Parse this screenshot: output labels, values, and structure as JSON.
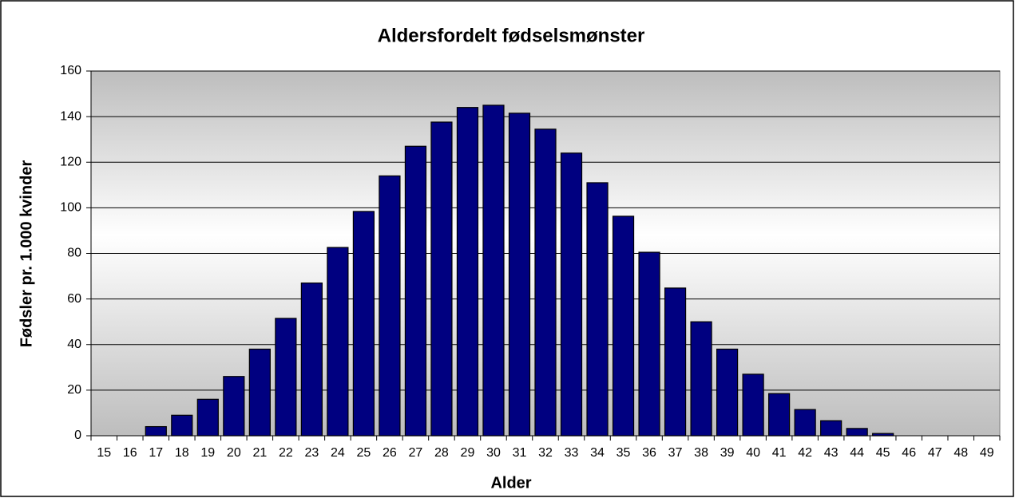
{
  "chart_data": {
    "type": "bar",
    "title": "Aldersfordelt fødselsmønster",
    "x_label": "Alder",
    "y_label": "Fødsler pr. 1.000 kvinder",
    "categories": [
      "15",
      "16",
      "17",
      "18",
      "19",
      "20",
      "21",
      "22",
      "23",
      "24",
      "25",
      "26",
      "27",
      "28",
      "29",
      "30",
      "31",
      "32",
      "33",
      "34",
      "35",
      "36",
      "37",
      "38",
      "39",
      "40",
      "41",
      "42",
      "43",
      "44",
      "45",
      "46",
      "47",
      "48",
      "49"
    ],
    "values": [
      0,
      0,
      4,
      9,
      16,
      26,
      38,
      51.5,
      67,
      82.6,
      98.4,
      114,
      127,
      137.6,
      144,
      145,
      141.5,
      134.5,
      124,
      111,
      96.3,
      80.5,
      64.8,
      50,
      38,
      27,
      18.5,
      11.5,
      6.6,
      3.2,
      1,
      0,
      0,
      0,
      0
    ],
    "color": "#000080",
    "ylim": [
      0,
      160
    ],
    "yticks": [
      0,
      20,
      40,
      60,
      80,
      100,
      120,
      140,
      160
    ],
    "grid": true
  }
}
